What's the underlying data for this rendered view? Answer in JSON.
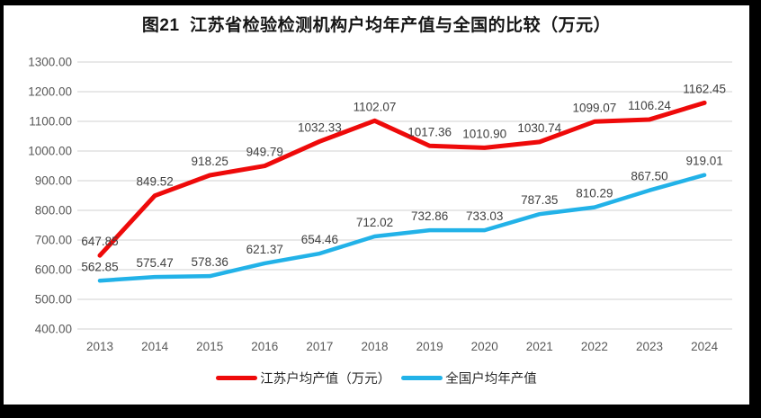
{
  "chart_data": {
    "type": "line",
    "title": "图21  江苏省检验检测机构户均年产值与全国的比较（万元）",
    "categories": [
      "2013",
      "2014",
      "2015",
      "2016",
      "2017",
      "2018",
      "2019",
      "2020",
      "2021",
      "2022",
      "2023",
      "2024"
    ],
    "series": [
      {
        "id": "jiangsu",
        "name": "江苏户均产值（万元）",
        "color": "#ee0a0a",
        "values": [
          647.85,
          849.52,
          918.25,
          949.79,
          1032.33,
          1102.07,
          1017.36,
          1010.9,
          1030.74,
          1099.07,
          1106.24,
          1162.45
        ]
      },
      {
        "id": "national",
        "name": "全国户均年产值",
        "color": "#22b2e8",
        "values": [
          562.85,
          575.47,
          578.36,
          621.37,
          654.46,
          712.02,
          732.86,
          733.03,
          787.35,
          810.29,
          867.5,
          919.01
        ]
      }
    ],
    "ylim": [
      400,
      1300
    ],
    "yticks": [
      "400.00",
      "500.00",
      "600.00",
      "700.00",
      "800.00",
      "900.00",
      "1000.00",
      "1100.00",
      "1200.00",
      "1300.00"
    ],
    "grid": true,
    "legend_position": "bottom",
    "colors": {
      "gridline": "#d9d9d9",
      "axis_text": "#595959",
      "data_label": "#3f3f3f",
      "background": "#ffffff",
      "frame": "#000000"
    }
  }
}
